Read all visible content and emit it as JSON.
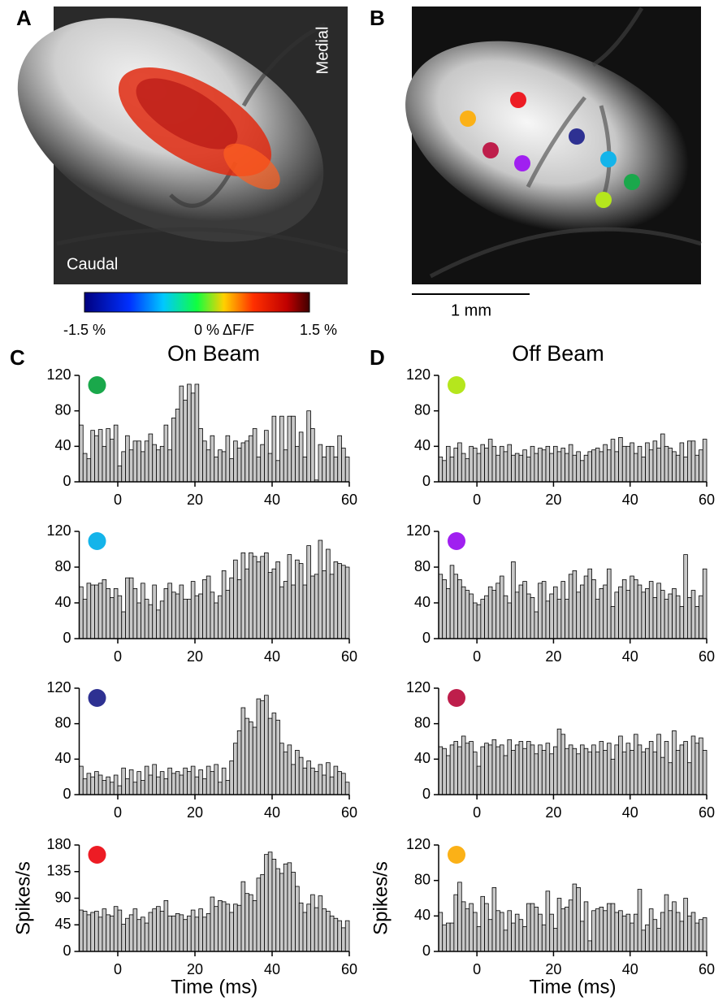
{
  "figure": {
    "panel_a": "A",
    "panel_b": "B",
    "panel_c": "C",
    "panel_d": "D",
    "medial": "Medial",
    "caudal": "Caudal",
    "scale_bar": "1 mm",
    "colorbar_min": "-1.5 %",
    "colorbar_mid": "0 % ΔF/F",
    "colorbar_max": "1.5 %",
    "left_title": "On Beam",
    "right_title": "Off Beam"
  },
  "chart_data": [
    {
      "type": "histogram",
      "marker_color": "#1aa84b",
      "color": "#c8c8c8",
      "bins": [
        -10,
        -9,
        -8,
        -7,
        -6,
        -5,
        -4,
        -3,
        -2,
        -1,
        0,
        1,
        2,
        3,
        4,
        5,
        6,
        7,
        8,
        9,
        10,
        11,
        12,
        13,
        14,
        15,
        16,
        17,
        18,
        19,
        20,
        21,
        22,
        23,
        24,
        25,
        26,
        27,
        28,
        29,
        30,
        31,
        32,
        33,
        34,
        35,
        36,
        37,
        38,
        39,
        40,
        41,
        42,
        43,
        44,
        45,
        46,
        47,
        48,
        49,
        50,
        51,
        52,
        53,
        54,
        55,
        56,
        57,
        58,
        59,
        60
      ],
      "values": [
        64,
        32,
        26,
        58,
        52,
        59,
        40,
        60,
        48,
        64,
        18,
        34,
        52,
        36,
        46,
        46,
        34,
        46,
        54,
        42,
        36,
        40,
        64,
        36,
        72,
        82,
        108,
        92,
        110,
        100,
        110,
        60,
        46,
        36,
        52,
        28,
        36,
        34,
        52,
        26,
        46,
        38,
        44,
        46,
        52,
        60,
        28,
        42,
        58,
        32,
        74,
        24,
        74,
        36,
        74,
        74,
        40,
        56,
        28,
        80,
        60,
        2,
        42,
        28,
        40,
        40,
        28,
        52,
        38,
        28
      ],
      "xlim": [
        -10,
        60
      ],
      "xticks": [
        0,
        20,
        40,
        60
      ],
      "ylim": [
        0,
        120
      ],
      "yticks": [
        0,
        40,
        80,
        120
      ]
    },
    {
      "type": "histogram",
      "marker_color": "#14b4ea",
      "color": "#c8c8c8",
      "bins": [
        -10,
        -9,
        -8,
        -7,
        -6,
        -5,
        -4,
        -3,
        -2,
        -1,
        0,
        1,
        2,
        3,
        4,
        5,
        6,
        7,
        8,
        9,
        10,
        11,
        12,
        13,
        14,
        15,
        16,
        17,
        18,
        19,
        20,
        21,
        22,
        23,
        24,
        25,
        26,
        27,
        28,
        29,
        30,
        31,
        32,
        33,
        34,
        35,
        36,
        37,
        38,
        39,
        40,
        41,
        42,
        43,
        44,
        45,
        46,
        47,
        48,
        49,
        50,
        51,
        52,
        53,
        54,
        55,
        56,
        57,
        58,
        59,
        60
      ],
      "values": [
        58,
        44,
        62,
        60,
        60,
        62,
        66,
        56,
        46,
        56,
        48,
        30,
        68,
        68,
        56,
        40,
        62,
        44,
        38,
        60,
        32,
        42,
        56,
        62,
        52,
        50,
        60,
        44,
        44,
        64,
        48,
        50,
        66,
        70,
        52,
        40,
        48,
        76,
        54,
        68,
        88,
        66,
        96,
        78,
        96,
        92,
        86,
        92,
        96,
        74,
        78,
        86,
        58,
        64,
        94,
        60,
        88,
        84,
        60,
        104,
        70,
        72,
        110,
        76,
        100,
        72,
        86,
        84,
        82,
        80
      ],
      "xlim": [
        -10,
        60
      ],
      "xticks": [
        0,
        20,
        40,
        60
      ],
      "ylim": [
        0,
        120
      ],
      "yticks": [
        0,
        40,
        80,
        120
      ]
    },
    {
      "type": "histogram",
      "marker_color": "#2e3192",
      "color": "#c8c8c8",
      "bins": [
        -10,
        -9,
        -8,
        -7,
        -6,
        -5,
        -4,
        -3,
        -2,
        -1,
        0,
        1,
        2,
        3,
        4,
        5,
        6,
        7,
        8,
        9,
        10,
        11,
        12,
        13,
        14,
        15,
        16,
        17,
        18,
        19,
        20,
        21,
        22,
        23,
        24,
        25,
        26,
        27,
        28,
        29,
        30,
        31,
        32,
        33,
        34,
        35,
        36,
        37,
        38,
        39,
        40,
        41,
        42,
        43,
        44,
        45,
        46,
        47,
        48,
        49,
        50,
        51,
        52,
        53,
        54,
        55,
        56,
        57,
        58,
        59,
        60
      ],
      "values": [
        32,
        18,
        24,
        20,
        26,
        22,
        16,
        20,
        14,
        22,
        10,
        30,
        18,
        28,
        14,
        26,
        16,
        32,
        22,
        34,
        20,
        26,
        18,
        30,
        24,
        26,
        22,
        30,
        26,
        32,
        20,
        28,
        18,
        32,
        26,
        34,
        14,
        30,
        16,
        38,
        58,
        72,
        98,
        86,
        82,
        76,
        108,
        106,
        112,
        86,
        92,
        84,
        58,
        48,
        56,
        34,
        50,
        42,
        30,
        38,
        30,
        26,
        34,
        22,
        36,
        20,
        32,
        26,
        24,
        14
      ],
      "xlim": [
        -10,
        60
      ],
      "xticks": [
        0,
        20,
        40,
        60
      ],
      "ylim": [
        0,
        120
      ],
      "yticks": [
        0,
        40,
        80,
        120
      ]
    },
    {
      "type": "histogram",
      "marker_color": "#ed1c24",
      "color": "#c8c8c8",
      "bins": [
        -10,
        -9,
        -8,
        -7,
        -6,
        -5,
        -4,
        -3,
        -2,
        -1,
        0,
        1,
        2,
        3,
        4,
        5,
        6,
        7,
        8,
        9,
        10,
        11,
        12,
        13,
        14,
        15,
        16,
        17,
        18,
        19,
        20,
        21,
        22,
        23,
        24,
        25,
        26,
        27,
        28,
        29,
        30,
        31,
        32,
        33,
        34,
        35,
        36,
        37,
        38,
        39,
        40,
        41,
        42,
        43,
        44,
        45,
        46,
        47,
        48,
        49,
        50,
        51,
        52,
        53,
        54,
        55,
        56,
        57,
        58,
        59,
        60
      ],
      "values": [
        70,
        68,
        62,
        66,
        68,
        58,
        72,
        62,
        60,
        76,
        70,
        46,
        56,
        62,
        72,
        54,
        58,
        48,
        66,
        72,
        76,
        68,
        86,
        60,
        60,
        64,
        62,
        54,
        60,
        70,
        58,
        72,
        58,
        64,
        92,
        76,
        86,
        84,
        80,
        66,
        80,
        78,
        118,
        98,
        96,
        86,
        124,
        130,
        164,
        168,
        156,
        140,
        132,
        148,
        150,
        134,
        110,
        82,
        66,
        80,
        96,
        74,
        94,
        72,
        68,
        60,
        56,
        52,
        40,
        52
      ],
      "xlim": [
        -10,
        60
      ],
      "xticks": [
        0,
        20,
        40,
        60
      ],
      "ylim": [
        0,
        180
      ],
      "yticks": [
        0,
        45,
        90,
        135,
        180
      ],
      "xlabel": "Time (ms)",
      "ylabel": "Spikes/s"
    },
    {
      "type": "histogram",
      "marker_color": "#b5e61d",
      "color": "#c8c8c8",
      "bins": [
        -10,
        -9,
        -8,
        -7,
        -6,
        -5,
        -4,
        -3,
        -2,
        -1,
        0,
        1,
        2,
        3,
        4,
        5,
        6,
        7,
        8,
        9,
        10,
        11,
        12,
        13,
        14,
        15,
        16,
        17,
        18,
        19,
        20,
        21,
        22,
        23,
        24,
        25,
        26,
        27,
        28,
        29,
        30,
        31,
        32,
        33,
        34,
        35,
        36,
        37,
        38,
        39,
        40,
        41,
        42,
        43,
        44,
        45,
        46,
        47,
        48,
        49,
        50,
        51,
        52,
        53,
        54,
        55,
        56,
        57,
        58,
        59,
        60
      ],
      "values": [
        28,
        24,
        40,
        28,
        38,
        44,
        32,
        26,
        40,
        38,
        32,
        42,
        38,
        48,
        40,
        30,
        40,
        34,
        42,
        30,
        32,
        30,
        36,
        28,
        40,
        32,
        38,
        36,
        40,
        32,
        40,
        34,
        38,
        32,
        42,
        30,
        34,
        24,
        30,
        34,
        36,
        38,
        34,
        42,
        36,
        48,
        34,
        50,
        40,
        40,
        44,
        32,
        40,
        28,
        44,
        36,
        46,
        38,
        54,
        40,
        38,
        34,
        30,
        44,
        28,
        46,
        46,
        30,
        36,
        48
      ],
      "xlim": [
        -10,
        60
      ],
      "xticks": [
        0,
        20,
        40,
        60
      ],
      "ylim": [
        0,
        120
      ],
      "yticks": [
        0,
        40,
        80,
        120
      ]
    },
    {
      "type": "histogram",
      "marker_color": "#a020f0",
      "color": "#c8c8c8",
      "bins": [
        -10,
        -9,
        -8,
        -7,
        -6,
        -5,
        -4,
        -3,
        -2,
        -1,
        0,
        1,
        2,
        3,
        4,
        5,
        6,
        7,
        8,
        9,
        10,
        11,
        12,
        13,
        14,
        15,
        16,
        17,
        18,
        19,
        20,
        21,
        22,
        23,
        24,
        25,
        26,
        27,
        28,
        29,
        30,
        31,
        32,
        33,
        34,
        35,
        36,
        37,
        38,
        39,
        40,
        41,
        42,
        43,
        44,
        45,
        46,
        47,
        48,
        49,
        50,
        51,
        52,
        53,
        54,
        55,
        56,
        57,
        58,
        59,
        60
      ],
      "values": [
        72,
        66,
        56,
        82,
        72,
        66,
        58,
        54,
        50,
        40,
        38,
        44,
        48,
        58,
        54,
        62,
        70,
        48,
        40,
        86,
        52,
        60,
        64,
        50,
        46,
        30,
        62,
        64,
        42,
        50,
        58,
        44,
        64,
        44,
        72,
        76,
        52,
        60,
        70,
        78,
        66,
        44,
        56,
        60,
        78,
        36,
        52,
        58,
        66,
        54,
        70,
        66,
        60,
        52,
        56,
        64,
        46,
        62,
        54,
        44,
        50,
        56,
        48,
        36,
        94,
        46,
        54,
        36,
        48,
        78
      ],
      "xlim": [
        -10,
        60
      ],
      "xticks": [
        0,
        20,
        40,
        60
      ],
      "ylim": [
        0,
        120
      ],
      "yticks": [
        0,
        40,
        80,
        120
      ]
    },
    {
      "type": "histogram",
      "marker_color": "#be1e4b",
      "color": "#c8c8c8",
      "bins": [
        -10,
        -9,
        -8,
        -7,
        -6,
        -5,
        -4,
        -3,
        -2,
        -1,
        0,
        1,
        2,
        3,
        4,
        5,
        6,
        7,
        8,
        9,
        10,
        11,
        12,
        13,
        14,
        15,
        16,
        17,
        18,
        19,
        20,
        21,
        22,
        23,
        24,
        25,
        26,
        27,
        28,
        29,
        30,
        31,
        32,
        33,
        34,
        35,
        36,
        37,
        38,
        39,
        40,
        41,
        42,
        43,
        44,
        45,
        46,
        47,
        48,
        49,
        50,
        51,
        52,
        53,
        54,
        55,
        56,
        57,
        58,
        59,
        60
      ],
      "values": [
        54,
        52,
        44,
        56,
        60,
        54,
        66,
        58,
        60,
        48,
        32,
        54,
        58,
        56,
        62,
        54,
        56,
        44,
        62,
        50,
        56,
        60,
        52,
        60,
        56,
        46,
        56,
        50,
        58,
        46,
        54,
        74,
        68,
        52,
        56,
        52,
        46,
        56,
        52,
        48,
        56,
        48,
        60,
        50,
        58,
        40,
        56,
        66,
        48,
        58,
        50,
        68,
        56,
        48,
        52,
        60,
        48,
        68,
        42,
        60,
        36,
        72,
        50,
        56,
        60,
        36,
        66,
        58,
        64,
        50
      ],
      "xlim": [
        -10,
        60
      ],
      "xticks": [
        0,
        20,
        40,
        60
      ],
      "ylim": [
        0,
        120
      ],
      "yticks": [
        0,
        40,
        80,
        120
      ]
    },
    {
      "type": "histogram",
      "marker_color": "#fbb117",
      "color": "#c8c8c8",
      "bins": [
        -10,
        -9,
        -8,
        -7,
        -6,
        -5,
        -4,
        -3,
        -2,
        -1,
        0,
        1,
        2,
        3,
        4,
        5,
        6,
        7,
        8,
        9,
        10,
        11,
        12,
        13,
        14,
        15,
        16,
        17,
        18,
        19,
        20,
        21,
        22,
        23,
        24,
        25,
        26,
        27,
        28,
        29,
        30,
        31,
        32,
        33,
        34,
        35,
        36,
        37,
        38,
        39,
        40,
        41,
        42,
        43,
        44,
        45,
        46,
        47,
        48,
        49,
        50,
        51,
        52,
        53,
        54,
        55,
        56,
        57,
        58,
        59,
        60
      ],
      "values": [
        44,
        30,
        32,
        32,
        64,
        78,
        56,
        48,
        54,
        44,
        28,
        62,
        54,
        36,
        72,
        46,
        44,
        24,
        46,
        32,
        42,
        36,
        28,
        54,
        54,
        50,
        42,
        30,
        68,
        42,
        26,
        60,
        48,
        50,
        58,
        76,
        72,
        34,
        56,
        12,
        46,
        48,
        50,
        46,
        54,
        54,
        44,
        46,
        40,
        42,
        32,
        42,
        70,
        24,
        30,
        48,
        36,
        26,
        44,
        64,
        46,
        56,
        44,
        34,
        60,
        40,
        44,
        32,
        36,
        38
      ],
      "xlim": [
        -10,
        60
      ],
      "xticks": [
        0,
        20,
        40,
        60
      ],
      "ylim": [
        0,
        120
      ],
      "yticks": [
        0,
        40,
        80,
        120
      ],
      "xlabel": "Time (ms)",
      "ylabel": "Spikes/s"
    }
  ]
}
